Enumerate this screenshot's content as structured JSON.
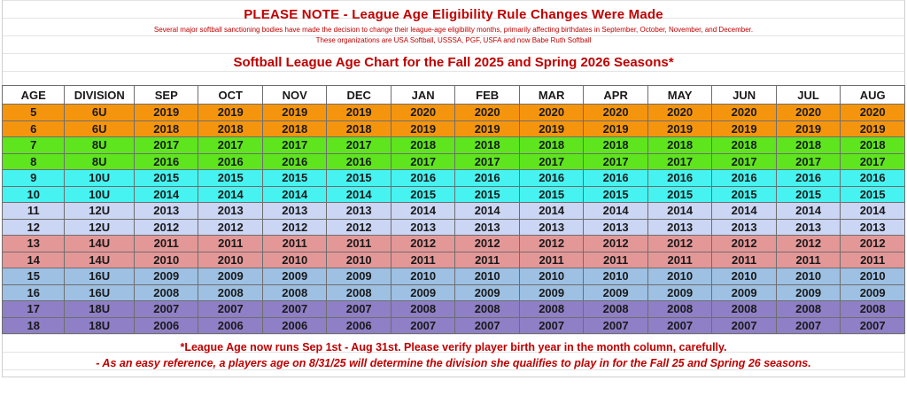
{
  "notice": {
    "title": "PLEASE NOTE - League Age Eligibility Rule Changes Were Made",
    "line1": "Several major softball sanctioning bodies have made the decision to change their league-age eligibility months, primarily affecting birthdates in September, October, November, and December.",
    "line2": "These organizations are USA Softball, USSSA, PGF, USFA and now Babe Ruth Softball",
    "chart_title": "Softball League Age Chart for the Fall 2025 and Spring 2026 Seasons*"
  },
  "table": {
    "headers": [
      "AGE",
      "DIVISION",
      "SEP",
      "OCT",
      "NOV",
      "DEC",
      "JAN",
      "FEB",
      "MAR",
      "APR",
      "MAY",
      "JUN",
      "JUL",
      "AUG"
    ],
    "rows": [
      {
        "color": "#f5950e",
        "cells": [
          "5",
          "6U",
          "2019",
          "2019",
          "2019",
          "2019",
          "2020",
          "2020",
          "2020",
          "2020",
          "2020",
          "2020",
          "2020",
          "2020"
        ]
      },
      {
        "color": "#f5950e",
        "cells": [
          "6",
          "6U",
          "2018",
          "2018",
          "2018",
          "2018",
          "2019",
          "2019",
          "2019",
          "2019",
          "2019",
          "2019",
          "2019",
          "2019"
        ]
      },
      {
        "color": "#5ee51d",
        "cells": [
          "7",
          "8U",
          "2017",
          "2017",
          "2017",
          "2017",
          "2018",
          "2018",
          "2018",
          "2018",
          "2018",
          "2018",
          "2018",
          "2018"
        ]
      },
      {
        "color": "#5ee51d",
        "cells": [
          "8",
          "8U",
          "2016",
          "2016",
          "2016",
          "2016",
          "2017",
          "2017",
          "2017",
          "2017",
          "2017",
          "2017",
          "2017",
          "2017"
        ]
      },
      {
        "color": "#46f3f0",
        "cells": [
          "9",
          "10U",
          "2015",
          "2015",
          "2015",
          "2015",
          "2016",
          "2016",
          "2016",
          "2016",
          "2016",
          "2016",
          "2016",
          "2016"
        ]
      },
      {
        "color": "#46f3f0",
        "cells": [
          "10",
          "10U",
          "2014",
          "2014",
          "2014",
          "2014",
          "2015",
          "2015",
          "2015",
          "2015",
          "2015",
          "2015",
          "2015",
          "2015"
        ]
      },
      {
        "color": "#cbd5f4",
        "cells": [
          "11",
          "12U",
          "2013",
          "2013",
          "2013",
          "2013",
          "2014",
          "2014",
          "2014",
          "2014",
          "2014",
          "2014",
          "2014",
          "2014"
        ]
      },
      {
        "color": "#cbd5f4",
        "cells": [
          "12",
          "12U",
          "2012",
          "2012",
          "2012",
          "2012",
          "2013",
          "2013",
          "2013",
          "2013",
          "2013",
          "2013",
          "2013",
          "2013"
        ]
      },
      {
        "color": "#e49797",
        "cells": [
          "13",
          "14U",
          "2011",
          "2011",
          "2011",
          "2011",
          "2012",
          "2012",
          "2012",
          "2012",
          "2012",
          "2012",
          "2012",
          "2012"
        ]
      },
      {
        "color": "#e49797",
        "cells": [
          "14",
          "14U",
          "2010",
          "2010",
          "2010",
          "2010",
          "2011",
          "2011",
          "2011",
          "2011",
          "2011",
          "2011",
          "2011",
          "2011"
        ]
      },
      {
        "color": "#9dc0e3",
        "cells": [
          "15",
          "16U",
          "2009",
          "2009",
          "2009",
          "2009",
          "2010",
          "2010",
          "2010",
          "2010",
          "2010",
          "2010",
          "2010",
          "2010"
        ]
      },
      {
        "color": "#9dc0e3",
        "cells": [
          "16",
          "16U",
          "2008",
          "2008",
          "2008",
          "2008",
          "2009",
          "2009",
          "2009",
          "2009",
          "2009",
          "2009",
          "2009",
          "2009"
        ]
      },
      {
        "color": "#8f7fc6",
        "cells": [
          "17",
          "18U",
          "2007",
          "2007",
          "2007",
          "2007",
          "2008",
          "2008",
          "2008",
          "2008",
          "2008",
          "2008",
          "2008",
          "2008"
        ]
      },
      {
        "color": "#8f7fc6",
        "cells": [
          "18",
          "18U",
          "2006",
          "2006",
          "2006",
          "2006",
          "2007",
          "2007",
          "2007",
          "2007",
          "2007",
          "2007",
          "2007",
          "2007"
        ]
      }
    ]
  },
  "footer": {
    "note1": "*League Age now runs Sep 1st - Aug 31st. Please verify player birth year in the month column, carefully.",
    "note2": "- As an easy reference, a players age on 8/31/25 will determine the division she qualifies to play in for the Fall 25 and Spring 26 seasons."
  }
}
